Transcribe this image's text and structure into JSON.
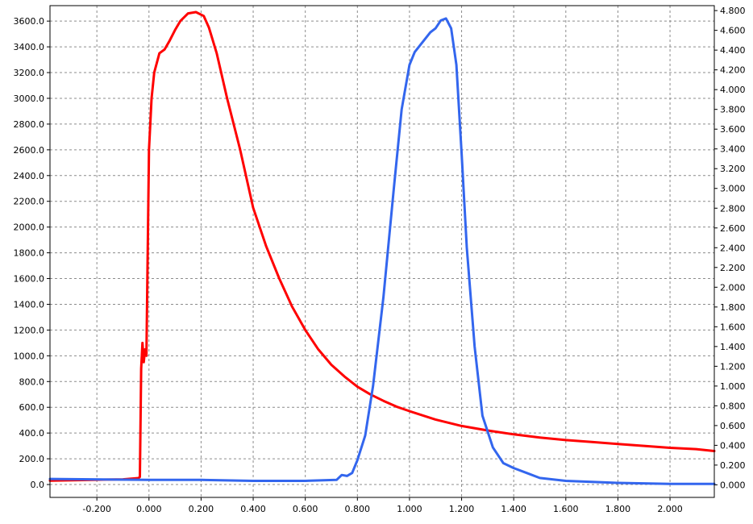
{
  "chart_data": {
    "type": "line",
    "title": "",
    "xlabel": "",
    "ylabel": "",
    "y2label": "",
    "grid": true,
    "legend": "none",
    "xlim": [
      -0.38,
      2.17
    ],
    "ylim": [
      -100,
      3720
    ],
    "y2lim": [
      -0.127,
      4.85
    ],
    "x_ticks": [
      "-0.200",
      "0.000",
      "0.200",
      "0.400",
      "0.600",
      "0.800",
      "1.000",
      "1.200",
      "1.400",
      "1.600",
      "1.800",
      "2.000"
    ],
    "x_tick_values": [
      -0.2,
      0,
      0.2,
      0.4,
      0.6,
      0.8,
      1.0,
      1.2,
      1.4,
      1.6,
      1.8,
      2.0
    ],
    "y_ticks": [
      "0.0",
      "200.0",
      "400.0",
      "600.0",
      "800.0",
      "1000.0",
      "1200.0",
      "1400.0",
      "1600.0",
      "1800.0",
      "2000.0",
      "2200.0",
      "2400.0",
      "2600.0",
      "2800.0",
      "3000.0",
      "3200.0",
      "3400.0",
      "3600.0"
    ],
    "y_tick_values": [
      0,
      200,
      400,
      600,
      800,
      1000,
      1200,
      1400,
      1600,
      1800,
      2000,
      2200,
      2400,
      2600,
      2800,
      3000,
      3200,
      3400,
      3600
    ],
    "y2_ticks": [
      "0.000",
      "0.200",
      "0.400",
      "0.600",
      "0.800",
      "1.000",
      "1.200",
      "1.400",
      "1.600",
      "1.800",
      "2.000",
      "2.200",
      "2.400",
      "2.600",
      "2.800",
      "3.000",
      "3.200",
      "3.400",
      "3.600",
      "3.800",
      "4.000",
      "4.200",
      "4.400",
      "4.600",
      "4.800"
    ],
    "y2_tick_values": [
      0,
      0.2,
      0.4,
      0.6,
      0.8,
      1.0,
      1.2,
      1.4,
      1.6,
      1.8,
      2.0,
      2.2,
      2.4,
      2.6,
      2.8,
      3.0,
      3.2,
      3.4,
      3.6,
      3.8,
      4.0,
      4.2,
      4.4,
      4.6,
      4.8
    ],
    "series": [
      {
        "axis": "left",
        "color": "#ff0000",
        "x": [
          -0.38,
          -0.1,
          -0.04,
          -0.035,
          -0.03,
          -0.025,
          -0.02,
          -0.015,
          -0.01,
          -0.005,
          0.0,
          0.01,
          0.02,
          0.04,
          0.06,
          0.08,
          0.1,
          0.12,
          0.15,
          0.18,
          0.21,
          0.23,
          0.26,
          0.3,
          0.35,
          0.4,
          0.45,
          0.5,
          0.55,
          0.6,
          0.65,
          0.7,
          0.75,
          0.8,
          0.85,
          0.9,
          0.95,
          1.0,
          1.1,
          1.2,
          1.3,
          1.4,
          1.5,
          1.6,
          1.7,
          1.8,
          1.9,
          2.0,
          2.1,
          2.17
        ],
        "values": [
          30,
          40,
          50,
          60,
          900,
          1100,
          950,
          1050,
          1000,
          1800,
          2600,
          3000,
          3200,
          3350,
          3380,
          3450,
          3530,
          3600,
          3660,
          3670,
          3640,
          3550,
          3350,
          3000,
          2600,
          2150,
          1850,
          1600,
          1380,
          1200,
          1050,
          930,
          840,
          760,
          700,
          650,
          605,
          570,
          505,
          455,
          420,
          390,
          365,
          345,
          330,
          315,
          300,
          285,
          275,
          260
        ]
      },
      {
        "axis": "right",
        "color": "#3366ee",
        "x": [
          -0.38,
          0.0,
          0.2,
          0.4,
          0.6,
          0.72,
          0.74,
          0.76,
          0.78,
          0.8,
          0.83,
          0.86,
          0.9,
          0.94,
          0.97,
          1.0,
          1.02,
          1.05,
          1.08,
          1.1,
          1.12,
          1.14,
          1.16,
          1.18,
          1.2,
          1.22,
          1.25,
          1.28,
          1.32,
          1.36,
          1.4,
          1.45,
          1.5,
          1.6,
          1.7,
          1.8,
          2.0,
          2.17
        ],
        "values": [
          0.06,
          0.05,
          0.05,
          0.04,
          0.04,
          0.05,
          0.1,
          0.09,
          0.12,
          0.25,
          0.5,
          1.0,
          1.9,
          3.0,
          3.8,
          4.25,
          4.38,
          4.48,
          4.58,
          4.62,
          4.7,
          4.72,
          4.62,
          4.25,
          3.35,
          2.4,
          1.4,
          0.7,
          0.38,
          0.22,
          0.17,
          0.12,
          0.07,
          0.04,
          0.03,
          0.02,
          0.01,
          0.01
        ]
      }
    ]
  }
}
